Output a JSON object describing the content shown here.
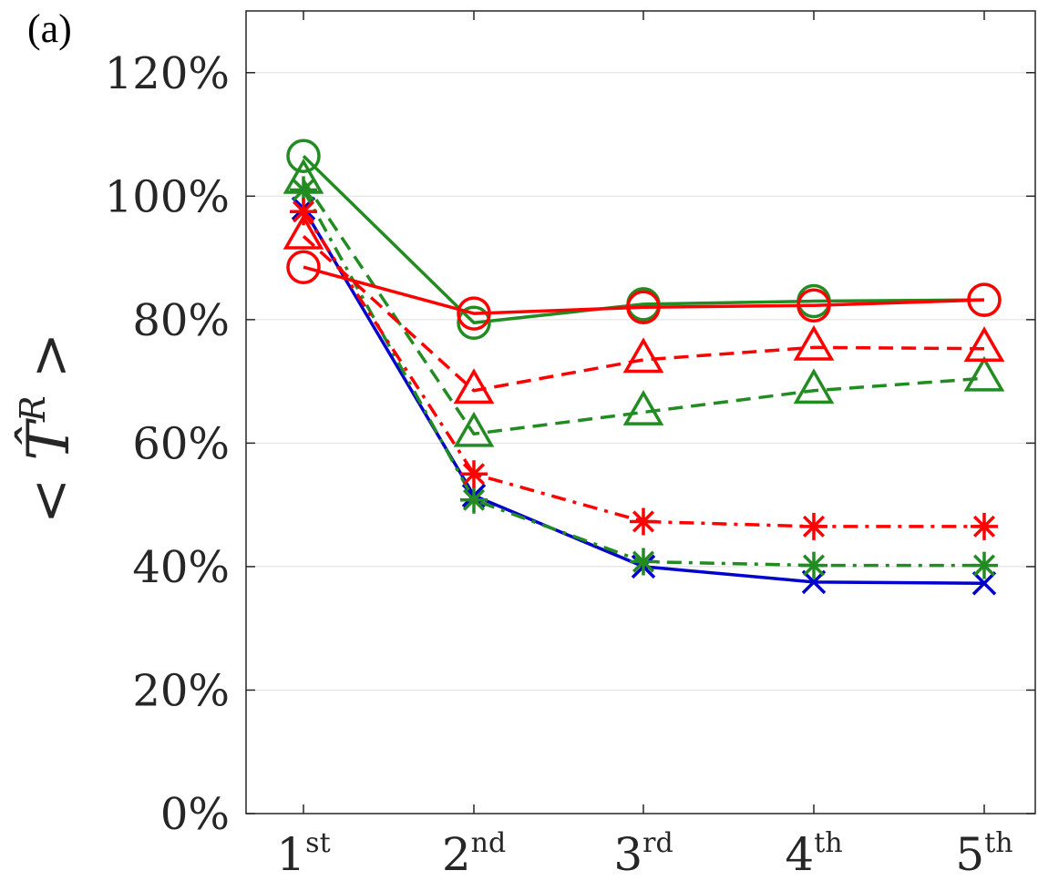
{
  "panel_label": "(a)",
  "chart_data": {
    "type": "line",
    "title": "",
    "xlabel": "",
    "ylabel": "< T̂ᴿ >",
    "categories": [
      {
        "base": "1",
        "sup": "st"
      },
      {
        "base": "2",
        "sup": "nd"
      },
      {
        "base": "3",
        "sup": "rd"
      },
      {
        "base": "4",
        "sup": "th"
      },
      {
        "base": "5",
        "sup": "th"
      }
    ],
    "ylim": [
      0,
      130
    ],
    "yticks": [
      0,
      20,
      40,
      60,
      80,
      100,
      120
    ],
    "ytick_suffix": "%",
    "grid": true,
    "series": [
      {
        "color": "#0000cc",
        "dash": "solid",
        "marker": "x",
        "values": [
          98,
          51.5,
          40,
          37.5,
          37.3
        ]
      },
      {
        "color": "#228b22",
        "dash": "dashdot",
        "marker": "asterisk",
        "values": [
          101,
          50.8,
          40.8,
          40.2,
          40.2
        ]
      },
      {
        "color": "#ff0000",
        "dash": "dashdot",
        "marker": "asterisk",
        "values": [
          97.5,
          55,
          47.3,
          46.5,
          46.5
        ]
      },
      {
        "color": "#228b22",
        "dash": "dashed",
        "marker": "triangle",
        "values": [
          102.5,
          61.5,
          65,
          68.5,
          70.5
        ]
      },
      {
        "color": "#ff0000",
        "dash": "dashed",
        "marker": "triangle",
        "values": [
          93.5,
          68.5,
          73.5,
          75.5,
          75.3
        ]
      },
      {
        "color": "#228b22",
        "dash": "solid",
        "marker": "circle",
        "values": [
          106.5,
          79.5,
          82.5,
          83,
          83.2
        ]
      },
      {
        "color": "#ff0000",
        "dash": "solid",
        "marker": "circle",
        "values": [
          88.5,
          81,
          82,
          82.3,
          83.2
        ]
      }
    ]
  }
}
